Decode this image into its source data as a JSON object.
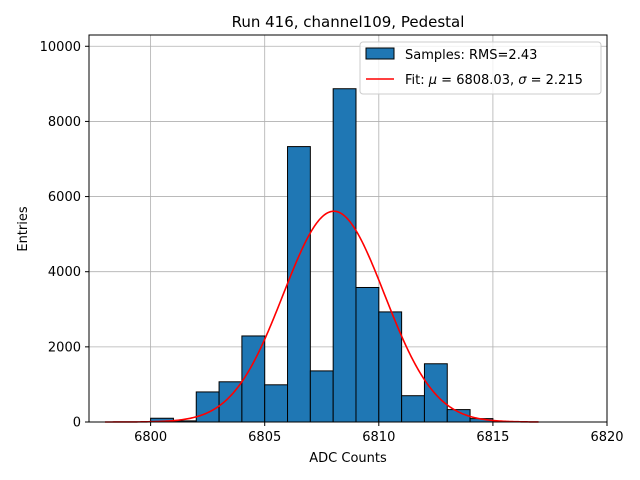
{
  "chart_data": {
    "type": "bar",
    "title": "Run 416, channel109, Pedestal",
    "xlabel": "ADC Counts",
    "ylabel": "Entries",
    "xlim": [
      6797.3,
      6820.0
    ],
    "ylim": [
      0,
      10300
    ],
    "xticks": [
      6800,
      6805,
      6810,
      6815,
      6820
    ],
    "yticks": [
      0,
      2000,
      4000,
      6000,
      8000,
      10000
    ],
    "grid": true,
    "legend_position": "top-right",
    "bin_width": 1,
    "bins": [
      {
        "left": 6799,
        "value": 0
      },
      {
        "left": 6800,
        "value": 100
      },
      {
        "left": 6801,
        "value": 30
      },
      {
        "left": 6802,
        "value": 800
      },
      {
        "left": 6803,
        "value": 1070
      },
      {
        "left": 6804,
        "value": 2290
      },
      {
        "left": 6805,
        "value": 990
      },
      {
        "left": 6806,
        "value": 7330
      },
      {
        "left": 6807,
        "value": 1360
      },
      {
        "left": 6808,
        "value": 8870
      },
      {
        "left": 6809,
        "value": 3580
      },
      {
        "left": 6810,
        "value": 2930
      },
      {
        "left": 6811,
        "value": 700
      },
      {
        "left": 6812,
        "value": 1550
      },
      {
        "left": 6813,
        "value": 330
      },
      {
        "left": 6814,
        "value": 90
      },
      {
        "left": 6815,
        "value": 10
      }
    ],
    "series": [
      {
        "name": "Samples: RMS=2.43",
        "kind": "histogram",
        "color": "#1f77b4"
      },
      {
        "name": "Fit: μ = 6808.03, σ = 2.215",
        "kind": "gaussian",
        "color": "#ff0000",
        "mu": 6808.03,
        "sigma": 2.215,
        "amplitude": 5610,
        "x_range": [
          6798,
          6817
        ]
      }
    ],
    "legend": {
      "samples_label": "Samples: RMS=2.43",
      "fit_prefix": "Fit: ",
      "mu_symbol": "μ",
      "mu_value": " = 6808.03, ",
      "sigma_symbol": "σ",
      "sigma_value": " = 2.215"
    }
  }
}
